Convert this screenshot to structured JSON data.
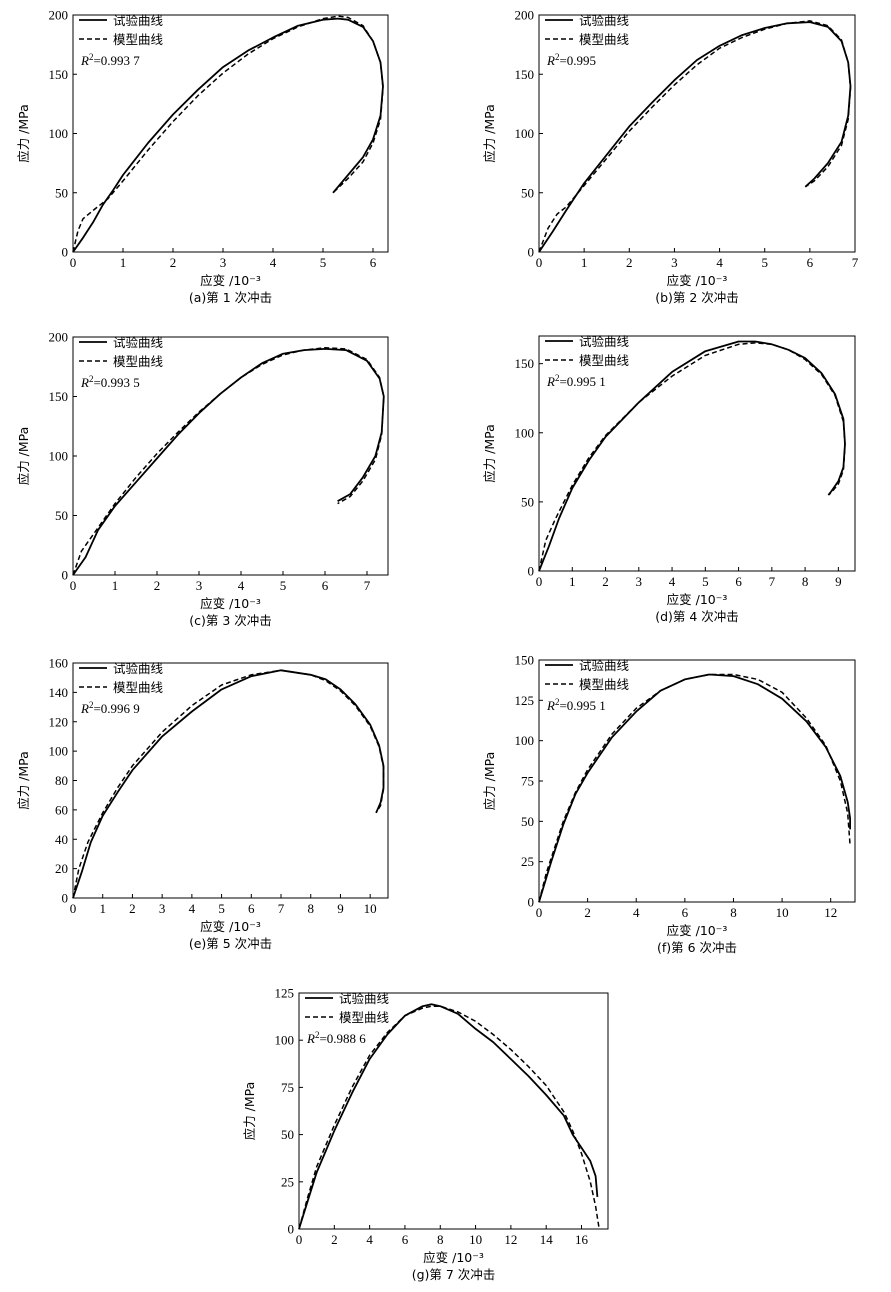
{
  "legend": {
    "exp": "试验曲线",
    "model": "模型曲线"
  },
  "axis": {
    "xlabel": "应变 /10⁻³",
    "ylabel": "应力 /MPa"
  },
  "chart_data": [
    {
      "type": "line",
      "caption": "(a)第 1 次冲击",
      "r2": "=0.993 7",
      "xlim": [
        0,
        6.3
      ],
      "ylim": [
        0,
        200
      ],
      "xticks": [
        0,
        1,
        2,
        3,
        4,
        5,
        6
      ],
      "yticks": [
        0,
        50,
        100,
        150,
        200
      ],
      "series": [
        {
          "name": "试验曲线",
          "x": [
            0,
            0.2,
            0.4,
            0.6,
            0.8,
            1.0,
            1.5,
            2.0,
            2.5,
            3.0,
            3.5,
            4.0,
            4.5,
            5.0,
            5.3,
            5.5,
            5.8,
            6.0,
            6.15,
            6.2,
            6.15,
            6.0,
            5.8,
            5.5,
            5.2
          ],
          "y": [
            0,
            12,
            25,
            40,
            52,
            65,
            92,
            116,
            137,
            156,
            170,
            181,
            191,
            196,
            197,
            196,
            190,
            178,
            160,
            140,
            115,
            95,
            80,
            65,
            50
          ]
        },
        {
          "name": "模型曲线",
          "x": [
            0,
            0.1,
            0.2,
            0.4,
            0.7,
            1.0,
            1.5,
            2.0,
            2.5,
            3.0,
            3.5,
            4.0,
            4.5,
            5.0,
            5.3,
            5.5,
            5.8,
            6.0,
            6.15,
            6.2,
            6.15,
            6.0,
            5.8,
            5.5,
            5.2
          ],
          "y": [
            0,
            18,
            28,
            35,
            45,
            60,
            86,
            110,
            132,
            151,
            167,
            180,
            190,
            197,
            199,
            198,
            191,
            178,
            160,
            138,
            112,
            92,
            76,
            62,
            50
          ]
        }
      ]
    },
    {
      "type": "line",
      "caption": "(b)第 2 次冲击",
      "r2": "=0.995",
      "xlim": [
        0,
        7
      ],
      "ylim": [
        0,
        200
      ],
      "xticks": [
        0,
        1,
        2,
        3,
        4,
        5,
        6,
        7
      ],
      "yticks": [
        0,
        50,
        100,
        150,
        200
      ],
      "series": [
        {
          "name": "试验曲线",
          "x": [
            0,
            0.3,
            0.6,
            1.0,
            1.5,
            2.0,
            2.5,
            3.0,
            3.5,
            4.0,
            4.5,
            5.0,
            5.5,
            6.0,
            6.4,
            6.7,
            6.85,
            6.9,
            6.85,
            6.7,
            6.4,
            6.1,
            5.9
          ],
          "y": [
            0,
            17,
            35,
            58,
            82,
            106,
            126,
            145,
            162,
            174,
            183,
            189,
            193,
            194,
            190,
            178,
            160,
            140,
            115,
            93,
            75,
            62,
            55
          ]
        },
        {
          "name": "模型曲线",
          "x": [
            0,
            0.2,
            0.4,
            0.6,
            1.0,
            1.5,
            2.0,
            2.5,
            3.0,
            3.5,
            4.0,
            4.5,
            5.0,
            5.5,
            6.0,
            6.4,
            6.7,
            6.85,
            6.9,
            6.85,
            6.7,
            6.4,
            6.1,
            5.9
          ],
          "y": [
            0,
            20,
            32,
            38,
            56,
            79,
            102,
            122,
            141,
            158,
            172,
            181,
            188,
            193,
            195,
            191,
            179,
            160,
            138,
            112,
            90,
            72,
            60,
            55
          ]
        }
      ]
    },
    {
      "type": "line",
      "caption": "(c)第 3 次冲击",
      "r2": "=0.993 5",
      "xlim": [
        0,
        7.5
      ],
      "ylim": [
        0,
        200
      ],
      "xticks": [
        0,
        1,
        2,
        3,
        4,
        5,
        6,
        7
      ],
      "yticks": [
        0,
        50,
        100,
        150,
        200
      ],
      "series": [
        {
          "name": "试验曲线",
          "x": [
            0,
            0.3,
            0.6,
            1.0,
            1.5,
            2.0,
            2.5,
            3.0,
            3.5,
            4.0,
            4.5,
            5.0,
            5.5,
            6.0,
            6.5,
            7.0,
            7.3,
            7.4,
            7.35,
            7.2,
            6.9,
            6.6,
            6.3
          ],
          "y": [
            0,
            15,
            38,
            58,
            78,
            98,
            118,
            136,
            152,
            166,
            178,
            186,
            189,
            190,
            189,
            180,
            165,
            150,
            120,
            100,
            82,
            68,
            62
          ]
        },
        {
          "name": "模型曲线",
          "x": [
            0,
            0.2,
            0.5,
            1.0,
            1.5,
            2.0,
            2.5,
            3.0,
            3.5,
            4.0,
            4.5,
            5.0,
            5.5,
            6.0,
            6.5,
            7.0,
            7.3,
            7.4,
            7.35,
            7.2,
            6.9,
            6.6,
            6.3
          ],
          "y": [
            0,
            20,
            35,
            60,
            82,
            102,
            120,
            137,
            152,
            166,
            177,
            185,
            189,
            191,
            190,
            181,
            166,
            150,
            118,
            97,
            79,
            66,
            60
          ]
        }
      ]
    },
    {
      "type": "line",
      "caption": "(d)第 4 次冲击",
      "r2": "=0.995 1",
      "xlim": [
        0,
        9.5
      ],
      "ylim": [
        0,
        170
      ],
      "xticks": [
        0,
        1,
        2,
        3,
        4,
        5,
        6,
        7,
        8,
        9
      ],
      "yticks": [
        0,
        50,
        100,
        150
      ],
      "series": [
        {
          "name": "试验曲线",
          "x": [
            0,
            0.3,
            0.6,
            1.0,
            1.5,
            2.0,
            3.0,
            4.0,
            5.0,
            6.0,
            6.5,
            7.0,
            7.5,
            8.0,
            8.5,
            8.9,
            9.15,
            9.2,
            9.15,
            9.0,
            8.8,
            8.7
          ],
          "y": [
            0,
            18,
            38,
            60,
            80,
            97,
            122,
            144,
            159,
            166,
            166,
            164,
            160,
            154,
            143,
            128,
            110,
            92,
            75,
            65,
            58,
            55
          ]
        },
        {
          "name": "模型曲线",
          "x": [
            0,
            0.2,
            0.5,
            1.0,
            1.5,
            2.0,
            3.0,
            4.0,
            5.0,
            6.0,
            6.5,
            7.0,
            7.5,
            8.0,
            8.5,
            8.9,
            9.15,
            9.2,
            9.15,
            9.0,
            8.8,
            8.7
          ],
          "y": [
            0,
            22,
            38,
            62,
            82,
            98,
            122,
            141,
            156,
            164,
            165,
            164,
            160,
            153,
            142,
            127,
            108,
            90,
            73,
            63,
            57,
            55
          ]
        }
      ]
    },
    {
      "type": "line",
      "caption": "(e)第 5 次冲击",
      "r2": "=0.996 9",
      "xlim": [
        0,
        10.6
      ],
      "ylim": [
        0,
        160
      ],
      "xticks": [
        0,
        1,
        2,
        3,
        4,
        5,
        6,
        7,
        8,
        9,
        10
      ],
      "yticks": [
        0,
        20,
        40,
        60,
        80,
        100,
        120,
        140,
        160
      ],
      "series": [
        {
          "name": "试验曲线",
          "x": [
            0,
            0.3,
            0.6,
            1.0,
            1.5,
            2.0,
            3.0,
            4.0,
            5.0,
            6.0,
            7.0,
            8.0,
            8.5,
            9.0,
            9.5,
            10.0,
            10.3,
            10.45,
            10.45,
            10.35,
            10.2
          ],
          "y": [
            0,
            18,
            38,
            56,
            72,
            87,
            110,
            127,
            142,
            151,
            155,
            152,
            149,
            142,
            132,
            118,
            104,
            90,
            75,
            65,
            58
          ]
        },
        {
          "name": "模型曲线",
          "x": [
            0,
            0.2,
            0.5,
            1.0,
            1.5,
            2.0,
            3.0,
            4.0,
            5.0,
            6.0,
            7.0,
            8.0,
            8.5,
            9.0,
            9.5,
            10.0,
            10.3,
            10.45,
            10.45,
            10.35,
            10.2
          ],
          "y": [
            0,
            20,
            38,
            58,
            75,
            90,
            113,
            131,
            145,
            152,
            155,
            152,
            148,
            141,
            131,
            117,
            103,
            89,
            74,
            63,
            58
          ]
        }
      ]
    },
    {
      "type": "line",
      "caption": "(f)第 6 次冲击",
      "r2": "=0.995 1",
      "xlim": [
        0,
        13
      ],
      "ylim": [
        0,
        150
      ],
      "xticks": [
        0,
        2,
        4,
        6,
        8,
        10,
        12
      ],
      "yticks": [
        0,
        25,
        50,
        75,
        100,
        125,
        150
      ],
      "series": [
        {
          "name": "试验曲线",
          "x": [
            0,
            0.5,
            1.0,
            1.5,
            2.0,
            3.0,
            4.0,
            5.0,
            6.0,
            7.0,
            8.0,
            9.0,
            10.0,
            11.0,
            11.8,
            12.4,
            12.7,
            12.8,
            12.8
          ],
          "y": [
            0,
            25,
            48,
            67,
            80,
            102,
            118,
            131,
            138,
            141,
            140,
            135,
            126,
            112,
            96,
            78,
            62,
            52,
            45
          ]
        },
        {
          "name": "模型曲线",
          "x": [
            0,
            0.3,
            1.0,
            1.5,
            2.0,
            3.0,
            4.0,
            5.0,
            6.0,
            7.0,
            8.0,
            9.0,
            10.0,
            11.0,
            11.8,
            12.4,
            12.7,
            12.8
          ],
          "y": [
            0,
            18,
            50,
            68,
            82,
            104,
            120,
            131,
            138,
            141,
            141,
            138,
            130,
            114,
            97,
            75,
            55,
            35
          ]
        }
      ]
    },
    {
      "type": "line",
      "caption": "(g)第 7 次冲击",
      "r2": "=0.988 6",
      "xlim": [
        0,
        17.5
      ],
      "ylim": [
        0,
        125
      ],
      "xticks": [
        0,
        2,
        4,
        6,
        8,
        10,
        12,
        14,
        16
      ],
      "yticks": [
        0,
        25,
        50,
        75,
        100,
        125
      ],
      "series": [
        {
          "name": "试验曲线",
          "x": [
            0,
            0.5,
            1.0,
            2.0,
            3.0,
            4.0,
            5.0,
            6.0,
            7.0,
            7.5,
            8.0,
            9.0,
            10.0,
            11.0,
            12.0,
            13.0,
            14.0,
            15.0,
            15.5,
            16.0,
            16.5,
            16.8,
            16.9
          ],
          "y": [
            0,
            15,
            30,
            52,
            72,
            90,
            103,
            113,
            118,
            119,
            118,
            114,
            106,
            99,
            90,
            81,
            71,
            60,
            50,
            43,
            36,
            28,
            17
          ]
        },
        {
          "name": "模型曲线",
          "x": [
            0,
            0.5,
            1.0,
            2.0,
            3.0,
            4.0,
            5.0,
            6.0,
            7.0,
            7.5,
            8.0,
            9.0,
            10.0,
            11.0,
            12.0,
            13.0,
            14.0,
            15.0,
            15.5,
            16.0,
            16.5,
            16.8,
            17.0
          ],
          "y": [
            0,
            17,
            33,
            55,
            75,
            92,
            104,
            113,
            117,
            118,
            118,
            115,
            110,
            103,
            95,
            86,
            76,
            62,
            52,
            40,
            25,
            12,
            0
          ]
        }
      ]
    }
  ]
}
